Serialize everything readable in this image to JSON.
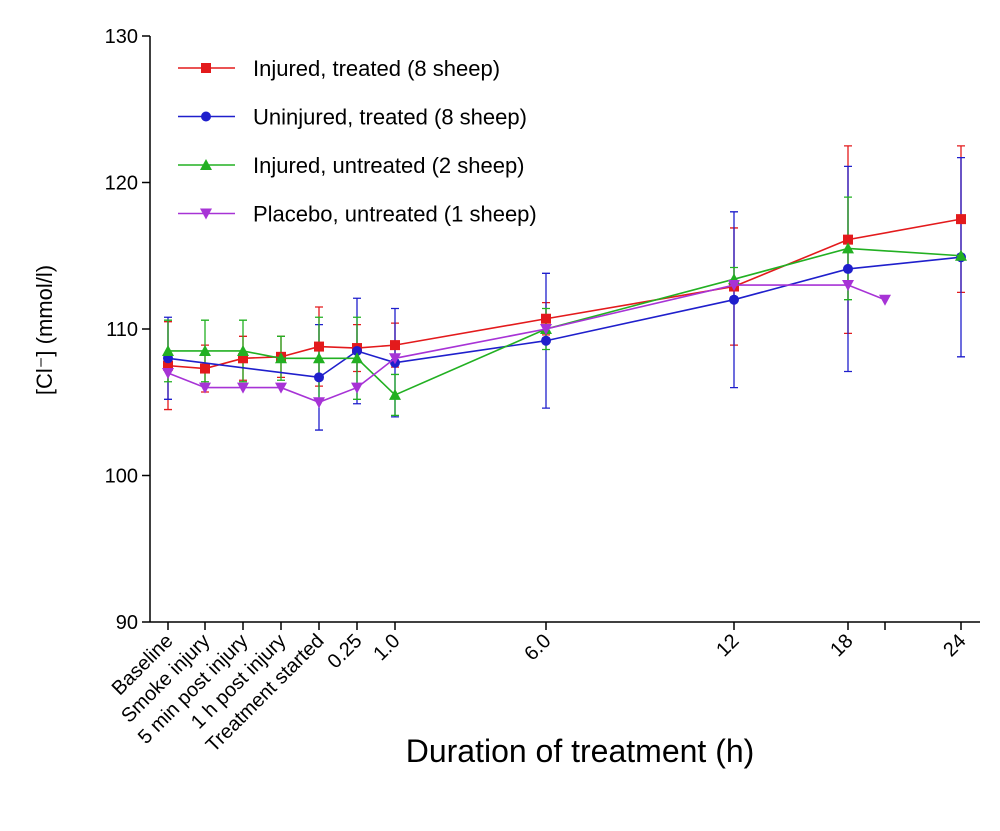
{
  "chart_data": {
    "type": "line",
    "xlabel": "Duration of treatment (h)",
    "ylabel": "[Cl⁻] (mmol/l)",
    "categories": [
      "Baseline",
      "Smoke injury",
      "5 min post injury",
      "1 h post injury",
      "Treatment started",
      "0.25",
      "1.0",
      "6.0",
      "12",
      "18",
      null,
      "24"
    ],
    "ylim": [
      90,
      130
    ],
    "yticks": [
      90,
      100,
      110,
      120,
      130
    ],
    "legend": "upper left",
    "series": [
      {
        "name": "Injured, treated (8 sheep)",
        "color": "#e31a1c",
        "marker": "square",
        "x": [
          0,
          1,
          2,
          3,
          4,
          5,
          6,
          7,
          8,
          9,
          11
        ],
        "values": [
          107.5,
          107.3,
          108.0,
          108.1,
          108.8,
          108.7,
          108.9,
          110.7,
          112.9,
          116.1,
          117.5
        ],
        "errors": [
          3.0,
          1.6,
          1.5,
          1.4,
          2.7,
          1.6,
          1.5,
          1.1,
          4.0,
          6.4,
          5.0
        ]
      },
      {
        "name": "Uninjured, treated (8 sheep)",
        "color": "#1f1fcc",
        "marker": "circle",
        "x": [
          0,
          4,
          5,
          6,
          7,
          8,
          9,
          11
        ],
        "values": [
          108.0,
          106.7,
          108.5,
          107.7,
          109.2,
          112.0,
          114.1,
          114.9
        ],
        "errors": [
          2.8,
          3.6,
          3.6,
          3.7,
          4.6,
          6.0,
          7.0,
          6.8
        ]
      },
      {
        "name": "Injured, untreated (2 sheep)",
        "color": "#22b022",
        "marker": "triangle-up",
        "x": [
          0,
          1,
          2,
          3,
          4,
          5,
          6,
          7,
          8,
          9,
          11
        ],
        "values": [
          108.5,
          108.5,
          108.5,
          108.0,
          108.0,
          108.0,
          105.5,
          110.0,
          113.4,
          115.5,
          115.0
        ],
        "errors": [
          2.1,
          2.1,
          2.1,
          1.5,
          2.8,
          2.8,
          1.4,
          1.4,
          0.8,
          3.5,
          null
        ]
      },
      {
        "name": "Placebo, untreated (1 sheep)",
        "color": "#a733d6",
        "marker": "triangle-down",
        "x": [
          0,
          1,
          2,
          3,
          4,
          5,
          6,
          7,
          8,
          9,
          10
        ],
        "values": [
          107.0,
          106.0,
          106.0,
          106.0,
          105.0,
          106.0,
          108.0,
          110.0,
          113.0,
          113.0,
          112.0
        ],
        "errors": [
          null,
          null,
          null,
          null,
          null,
          null,
          null,
          null,
          null,
          null,
          null
        ]
      }
    ]
  }
}
